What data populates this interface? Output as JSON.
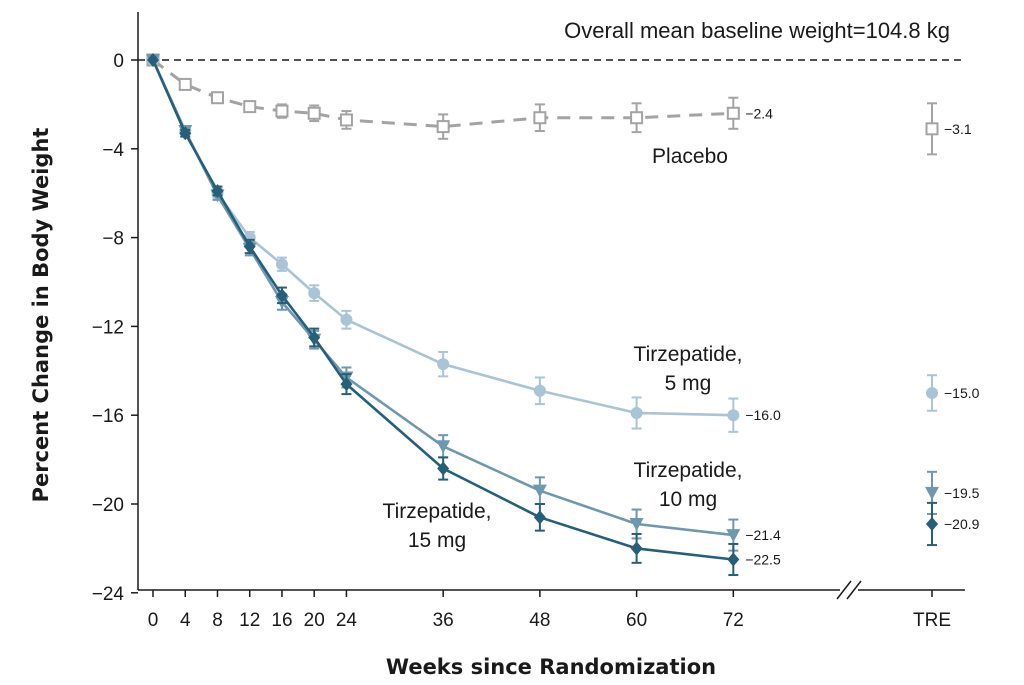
{
  "chart_data": {
    "type": "line",
    "ylabel": "Percent Change in Body Weight",
    "xlabel": "Weeks since Randomization",
    "annotation": "Overall mean baseline weight=104.8 kg",
    "ylim": [
      -24,
      2
    ],
    "yticks": [
      0,
      -4,
      -8,
      -12,
      -16,
      -20,
      -24
    ],
    "yticklabels": [
      "0",
      "−4",
      "−8",
      "−12",
      "−16",
      "−20",
      "−24"
    ],
    "x": [
      0,
      4,
      8,
      12,
      16,
      20,
      24,
      36,
      48,
      60,
      72
    ],
    "xticklabels": [
      "0",
      "4",
      "8",
      "12",
      "16",
      "20",
      "24",
      "36",
      "48",
      "60",
      "72"
    ],
    "tre_label": "TRE",
    "series": [
      {
        "name": "Placebo",
        "label_lines": [
          "Placebo"
        ],
        "marker": "square-open",
        "dashed": true,
        "color": "#a3a3a3",
        "values": [
          0,
          -1.1,
          -1.7,
          -2.1,
          -2.3,
          -2.4,
          -2.7,
          -3.0,
          -2.6,
          -2.6,
          -2.4
        ],
        "err": [
          0,
          0.2,
          0.2,
          0.2,
          0.3,
          0.35,
          0.4,
          0.55,
          0.6,
          0.65,
          0.7
        ],
        "end_label": "−2.4",
        "tre": -3.1,
        "tre_err": 1.15,
        "tre_label": "−3.1"
      },
      {
        "name": "Tirzepatide, 5 mg",
        "label_lines": [
          "Tirzepatide,",
          "5 mg"
        ],
        "marker": "circle",
        "dashed": false,
        "color": "#a9c4d5",
        "values": [
          0,
          -3.2,
          -6.0,
          -8.0,
          -9.2,
          -10.5,
          -11.7,
          -13.7,
          -14.9,
          -15.9,
          -16.0
        ],
        "err": [
          0,
          0.15,
          0.2,
          0.25,
          0.3,
          0.35,
          0.4,
          0.55,
          0.6,
          0.7,
          0.75
        ],
        "end_label": "−16.0",
        "tre": -15.0,
        "tre_err": 0.8,
        "tre_label": "−15.0"
      },
      {
        "name": "Tirzepatide, 10 mg",
        "label_lines": [
          "Tirzepatide,",
          "10 mg"
        ],
        "marker": "triangle-down",
        "dashed": false,
        "color": "#6f97ad",
        "values": [
          0,
          -3.2,
          -6.1,
          -8.5,
          -10.9,
          -12.6,
          -14.3,
          -17.4,
          -19.4,
          -20.9,
          -21.4
        ],
        "err": [
          0,
          0.15,
          0.2,
          0.3,
          0.35,
          0.4,
          0.45,
          0.5,
          0.6,
          0.65,
          0.7
        ],
        "end_label": "−21.4",
        "tre": -19.5,
        "tre_err": 0.95,
        "tre_label": "−19.5"
      },
      {
        "name": "Tirzepatide, 15 mg",
        "label_lines": [
          "Tirzepatide,",
          "15 mg"
        ],
        "marker": "diamond",
        "dashed": false,
        "color": "#255f79",
        "values": [
          0,
          -3.3,
          -5.9,
          -8.4,
          -10.6,
          -12.5,
          -14.6,
          -18.4,
          -20.6,
          -22.0,
          -22.5
        ],
        "err": [
          0,
          0.15,
          0.2,
          0.3,
          0.35,
          0.4,
          0.45,
          0.5,
          0.6,
          0.65,
          0.7
        ],
        "end_label": "−22.5",
        "tre": -20.9,
        "tre_err": 0.95,
        "tre_label": "−20.9"
      }
    ]
  }
}
